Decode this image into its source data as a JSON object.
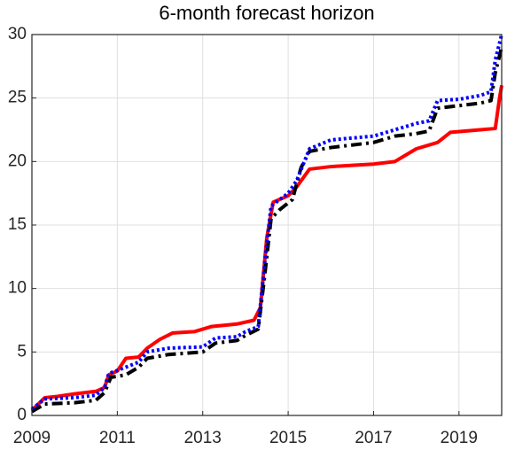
{
  "chart_data": {
    "type": "line",
    "title": "6-month forecast horizon",
    "xlim": [
      2009,
      2020
    ],
    "xticks": [
      2009,
      2011,
      2013,
      2015,
      2017,
      2019
    ],
    "ylim": [
      0,
      30
    ],
    "yticks": [
      0,
      5,
      10,
      15,
      20,
      25,
      30
    ],
    "grid": true,
    "series": [
      {
        "color": "#ff0000",
        "style": "solid",
        "x": [
          2009,
          2009.3,
          2009.6,
          2010,
          2010.5,
          2010.7,
          2010.8,
          2011.0,
          2011.2,
          2011.5,
          2011.7,
          2012,
          2012.3,
          2012.8,
          2013.2,
          2013.8,
          2014.2,
          2014.35,
          2014.5,
          2014.65,
          2015,
          2015.2,
          2015.5,
          2016,
          2016.5,
          2017,
          2017.5,
          2018,
          2018.5,
          2018.8,
          2019.5,
          2019.85,
          2019.95,
          2020
        ],
        "values": [
          0.4,
          1.4,
          1.5,
          1.7,
          1.9,
          2.2,
          3.2,
          3.5,
          4.5,
          4.6,
          5.3,
          6.0,
          6.5,
          6.6,
          7.0,
          7.2,
          7.5,
          8.5,
          14,
          16.8,
          17.3,
          18,
          19.4,
          19.6,
          19.7,
          19.8,
          20.0,
          21,
          21.5,
          22.3,
          22.5,
          22.6,
          25.0,
          26
        ]
      },
      {
        "color": "#000000",
        "style": "dashdot",
        "x": [
          2009,
          2009.3,
          2010,
          2010.5,
          2010.7,
          2010.85,
          2011.2,
          2011.5,
          2011.7,
          2012.2,
          2013,
          2013.3,
          2013.8,
          2014,
          2014.3,
          2014.45,
          2014.6,
          2014.8,
          2015.1,
          2015.3,
          2015.5,
          2016,
          2017,
          2017.5,
          2018,
          2018.3,
          2018.5,
          2019,
          2019.5,
          2019.75,
          2019.85,
          2020
        ],
        "values": [
          0.3,
          0.9,
          1.0,
          1.2,
          1.8,
          3.0,
          3.2,
          3.8,
          4.5,
          4.8,
          5.0,
          5.7,
          5.9,
          6.3,
          6.8,
          11,
          15.5,
          16.2,
          17,
          19.5,
          20.8,
          21.1,
          21.5,
          22.0,
          22.2,
          22.4,
          24.2,
          24.4,
          24.6,
          24.8,
          27,
          29
        ]
      },
      {
        "color": "#0000ff",
        "style": "dotted",
        "x": [
          2009,
          2009.3,
          2010,
          2010.5,
          2010.7,
          2010.8,
          2011.2,
          2011.5,
          2011.7,
          2012.2,
          2013,
          2013.3,
          2013.8,
          2014,
          2014.3,
          2014.45,
          2014.6,
          2015,
          2015.2,
          2015.5,
          2016,
          2017,
          2017.5,
          2018,
          2018.3,
          2018.5,
          2019,
          2019.5,
          2019.75,
          2019.85,
          2020
        ],
        "values": [
          0.5,
          1.3,
          1.4,
          1.6,
          2.2,
          3.3,
          3.8,
          4.2,
          5.0,
          5.3,
          5.4,
          6.1,
          6.2,
          6.6,
          7.0,
          12,
          16.5,
          17.5,
          18.5,
          21.0,
          21.7,
          22.0,
          22.5,
          23.0,
          23.2,
          24.8,
          24.9,
          25.2,
          25.5,
          28,
          30
        ]
      }
    ]
  }
}
